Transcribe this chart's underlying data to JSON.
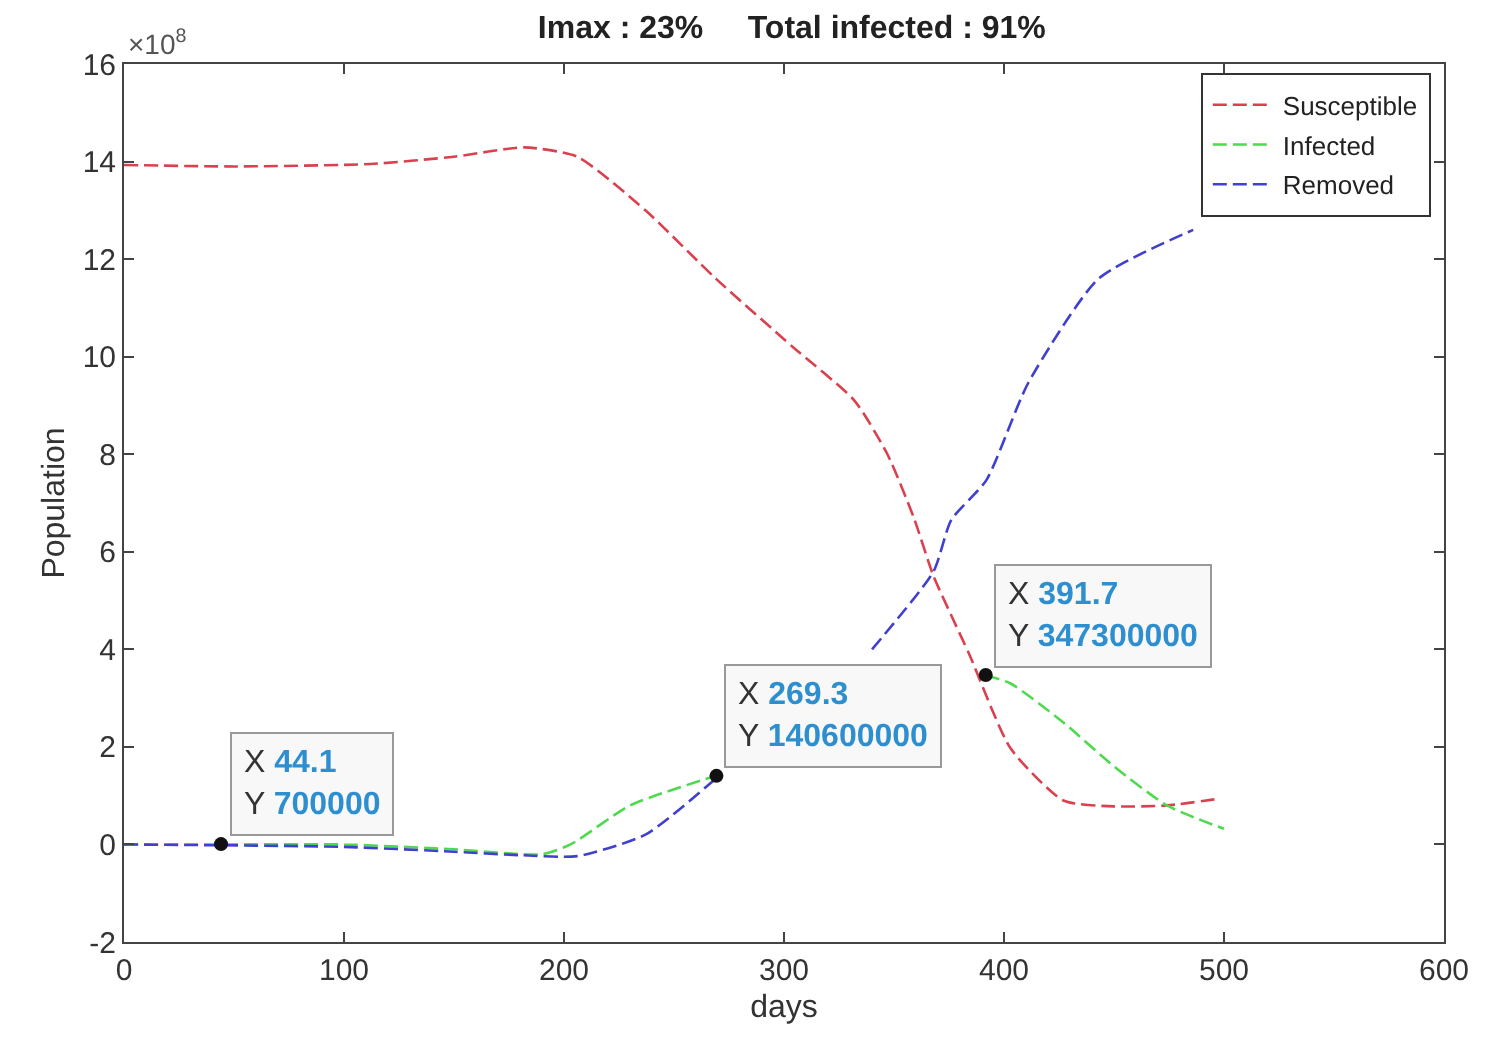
{
  "chart_data": {
    "type": "line",
    "title": "Imax : 23%     Total infected : 91%",
    "xlabel": "days",
    "ylabel": "Population",
    "xlim": [
      0,
      600
    ],
    "xticks": [
      0,
      100,
      200,
      300,
      400,
      500,
      600
    ],
    "ylim": [
      -2,
      16
    ],
    "yticks": [
      -2,
      0,
      2,
      4,
      6,
      8,
      10,
      12,
      14,
      16
    ],
    "legend": "top right",
    "line_style": "dashed",
    "marker": "none",
    "series": [
      {
        "name": "Susceptible",
        "color": "#d9414f",
        "x": [
          0,
          50,
          112,
          150,
          182,
          206,
          237,
          269,
          304,
          332,
          347,
          359,
          368,
          384,
          403,
          427,
          450,
          474,
          498
        ],
        "values": [
          13.93,
          13.9,
          13.95,
          14.1,
          14.29,
          14.1,
          13.0,
          11.6,
          10.2,
          9.1,
          8.0,
          6.7,
          5.5,
          3.92,
          1.97,
          0.9,
          0.78,
          0.8,
          0.94
        ]
      },
      {
        "name": "Infected",
        "color": "#4fd94f",
        "x": [
          0,
          44.1,
          100,
          150,
          190,
          203,
          230,
          269.3,
          300,
          330,
          360,
          391.7,
          403,
          427,
          450,
          474,
          500
        ],
        "values": [
          0,
          0,
          0,
          -0.1,
          -0.2,
          0,
          0.8,
          1.41,
          null,
          null,
          null,
          3.47,
          3.3,
          2.5,
          1.6,
          0.8,
          0.32
        ]
      },
      {
        "name": "Removed",
        "color": "#4040d0",
        "x": [
          0,
          100,
          150,
          180,
          206,
          237,
          269,
          300,
          340,
          368,
          376,
          392,
          411,
          443,
          486
        ],
        "values": [
          0,
          -0.05,
          -0.15,
          -0.22,
          -0.24,
          0.2,
          1.35,
          null,
          4.0,
          5.6,
          6.65,
          7.47,
          9.46,
          11.6,
          12.6
        ]
      }
    ],
    "annotations": [
      "×10$^{8}$",
      {
        "text": "X 44.1\nY 700000",
        "x": 44.1,
        "y": 0.007
      },
      {
        "text": "X 269.3\nY 140600000",
        "x": 269.3,
        "y": 1.406
      },
      {
        "text": "X 391.7\nY 347300000",
        "x": 391.7,
        "y": 3.473
      }
    ]
  }
}
